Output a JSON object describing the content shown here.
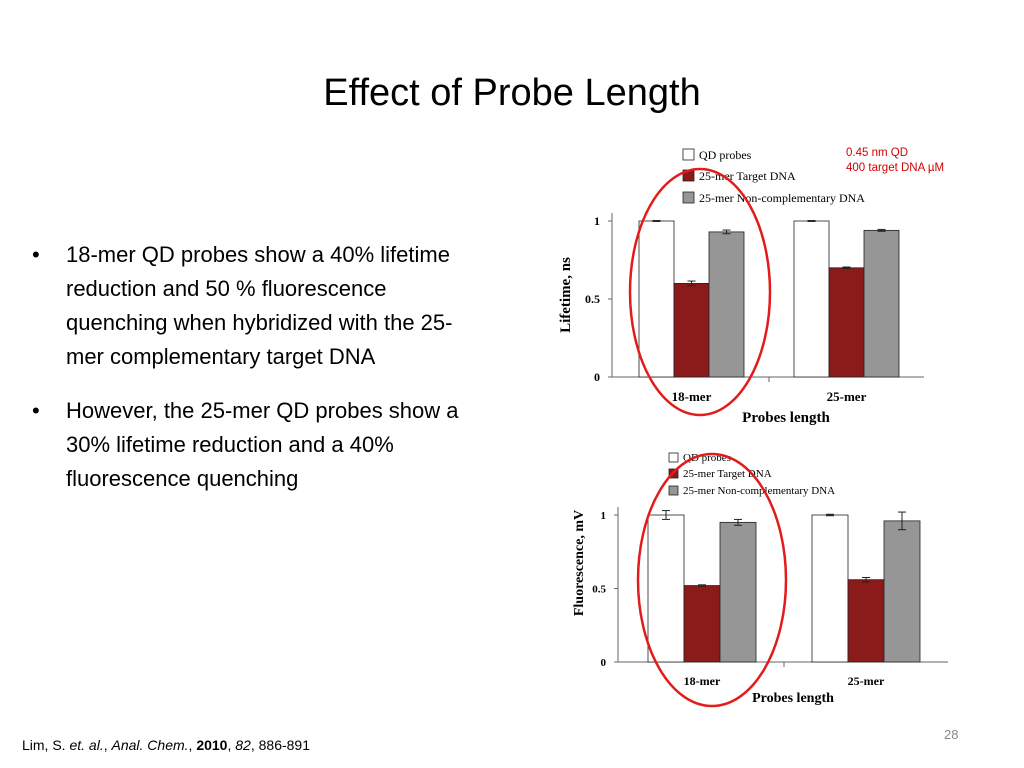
{
  "slide": {
    "title": "Effect of Probe Length",
    "bullets": [
      {
        "marker": "•",
        "text": "18-mer QD probes show a 40% lifetime reduction and 50 % fluorescence quenching when hybridized with the 25-mer complementary target DNA"
      },
      {
        "marker": "•",
        "text": "However, the 25-mer QD probes show a 30% lifetime reduction and a 40% fluorescence quenching"
      }
    ],
    "note_lines": [
      "0.45 nm QD",
      "400 target DNA µM"
    ],
    "citation": {
      "author": "Lim, S. ",
      "etal": "et. al.",
      "sep1": ", ",
      "journal": "Anal. Chem.",
      "sep2": ", ",
      "year": "2010",
      "sep3": ", ",
      "volume": "82",
      "pages": ", 886-891"
    },
    "page_number": "28"
  },
  "colors": {
    "qd_probes": "#ffffff",
    "target": "#8b1a1a",
    "noncomp": "#969696",
    "highlight_ring": "#e31b1b",
    "note": "#d40000"
  },
  "chart_data": [
    {
      "type": "bar",
      "categories": [
        "18-mer",
        "25-mer"
      ],
      "series": [
        {
          "name": "QD probes",
          "values": [
            1.0,
            1.0
          ],
          "errors": [
            0.003,
            0.003
          ]
        },
        {
          "name": "25-mer Target DNA",
          "values": [
            0.6,
            0.7
          ],
          "errors": [
            0.015,
            0.005
          ]
        },
        {
          "name": "25-mer Non-complementary DNA",
          "values": [
            0.93,
            0.94
          ],
          "errors": [
            0.012,
            0.006
          ]
        }
      ],
      "ylabel": "Lifetime, ns",
      "xlabel": "Probes length",
      "ylim": [
        0,
        1
      ],
      "yticks": [
        "0",
        "0.5",
        "1"
      ],
      "legend": "top",
      "grid": false
    },
    {
      "type": "bar",
      "categories": [
        "18-mer",
        "25-mer"
      ],
      "series": [
        {
          "name": "QD probes",
          "values": [
            1.0,
            1.0
          ],
          "errors": [
            0.03,
            0.005
          ]
        },
        {
          "name": "25-mer Target DNA",
          "values": [
            0.52,
            0.56
          ],
          "errors": [
            0.005,
            0.015
          ]
        },
        {
          "name": "25-mer Non-complementary DNA",
          "values": [
            0.95,
            0.96
          ],
          "errors": [
            0.02,
            0.06
          ]
        }
      ],
      "ylabel": "Fluorescence, mV",
      "xlabel": "Probes length",
      "ylim": [
        0,
        1
      ],
      "yticks": [
        "0",
        "0.5",
        "1"
      ],
      "legend": "top",
      "grid": false
    }
  ]
}
